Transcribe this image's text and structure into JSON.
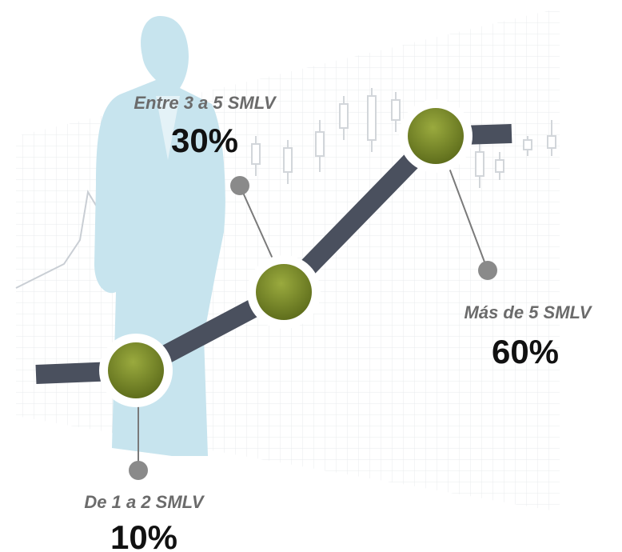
{
  "items": [
    {
      "label": "De 1 a 2 SMLV",
      "value": "10%"
    },
    {
      "label": "Entre 3 a 5 SMLV",
      "value": "30%"
    },
    {
      "label": "Más de 5 SMLV",
      "value": "60%"
    }
  ]
}
